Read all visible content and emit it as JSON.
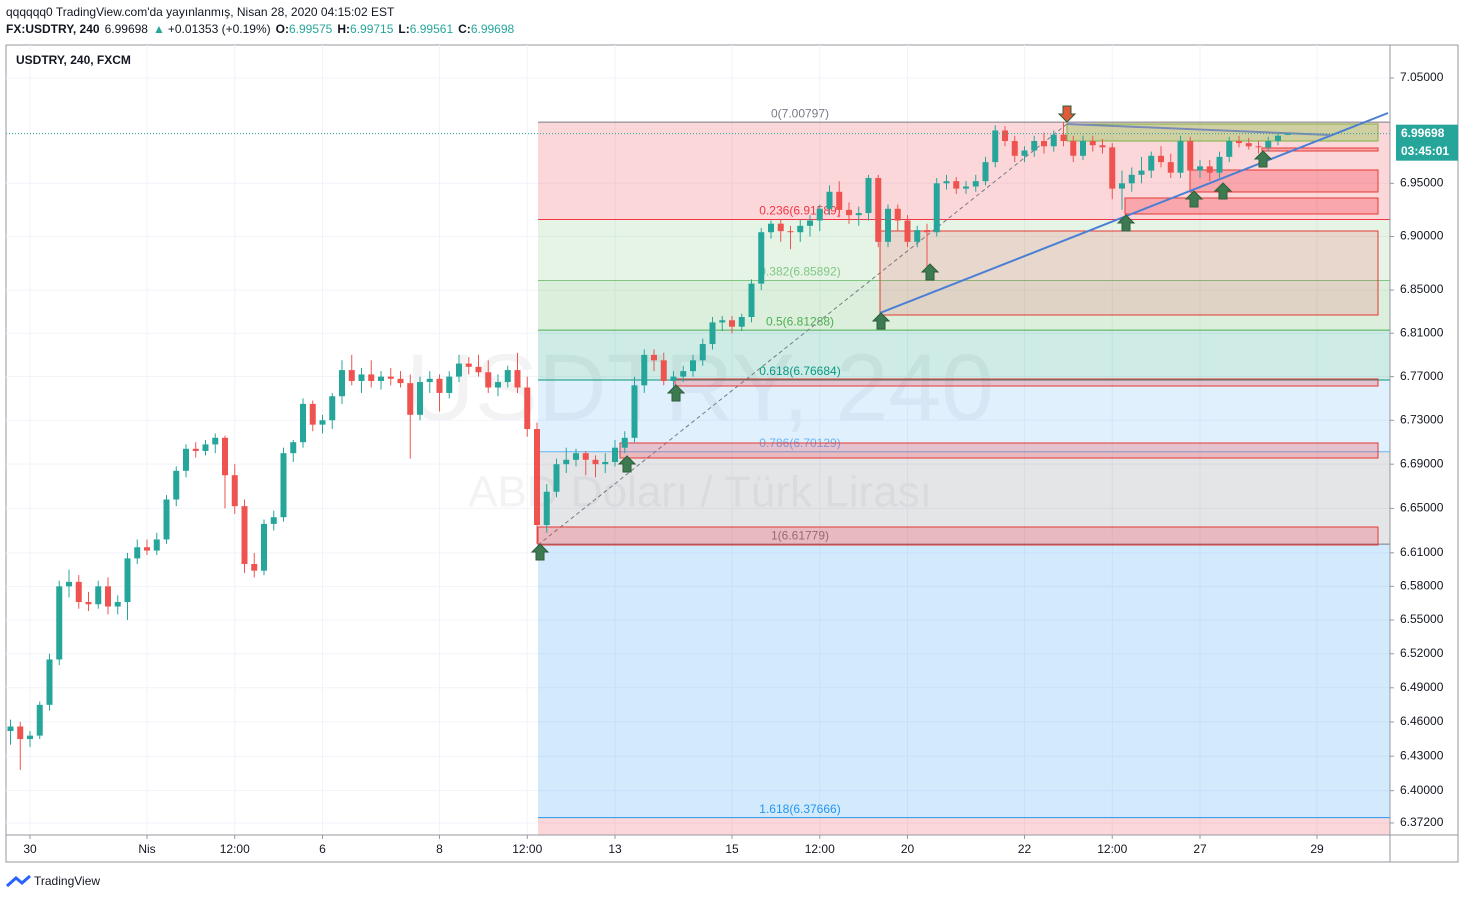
{
  "header": {
    "line1": "qqqqqq0 TradingView.com'da yayınlanmış, Nisan 28, 2020 04:15:02 EST",
    "symbol": "FX:USDTRY, 240",
    "change": "+0.01353 (+0.19%)",
    "labels": {
      "open": "O:",
      "high": "H:",
      "low": "L:",
      "close": "C:"
    }
  },
  "footer": {
    "brand": "TradingView"
  },
  "chart_data": {
    "type": "candlestick",
    "title": "USDTRY, 240, FXCM",
    "watermark": "USDTRY, 240",
    "watermark_subtitle": "ABD Doları / Türk Lirası",
    "countdown": "03:45:01",
    "last": {
      "open": 6.99575,
      "high": 6.99715,
      "low": 6.99561,
      "close": 6.99698
    },
    "up_color": "#26a69a",
    "down_color": "#ef5350",
    "log_scale": true,
    "grid": true,
    "ylim": [
      6.3616,
      7.0817
    ],
    "yticks": [
      {
        "value": 7.05,
        "label": "7.05000"
      },
      {
        "value": 6.95,
        "label": "6.95000"
      },
      {
        "value": 6.9,
        "label": "6.90000"
      },
      {
        "value": 6.85,
        "label": "6.85000"
      },
      {
        "value": 6.81,
        "label": "6.81000"
      },
      {
        "value": 6.77,
        "label": "6.77000"
      },
      {
        "value": 6.73,
        "label": "6.73000"
      },
      {
        "value": 6.69,
        "label": "6.69000"
      },
      {
        "value": 6.65,
        "label": "6.65000"
      },
      {
        "value": 6.61,
        "label": "6.61000"
      },
      {
        "value": 6.58,
        "label": "6.58000"
      },
      {
        "value": 6.55,
        "label": "6.55000"
      },
      {
        "value": 6.52,
        "label": "6.52000"
      },
      {
        "value": 6.49,
        "label": "6.49000"
      },
      {
        "value": 6.46,
        "label": "6.46000"
      },
      {
        "value": 6.43,
        "label": "6.43000"
      },
      {
        "value": 6.4,
        "label": "6.40000"
      },
      {
        "value": 6.372,
        "label": "6.37200"
      }
    ],
    "xticks": [
      {
        "value": 2,
        "label": "30"
      },
      {
        "value": 14,
        "label": "Nis"
      },
      {
        "value": 23,
        "label": "12:00"
      },
      {
        "value": 32,
        "label": "6"
      },
      {
        "value": 44,
        "label": "8"
      },
      {
        "value": 53,
        "label": "12:00"
      },
      {
        "value": 62,
        "label": "13"
      },
      {
        "value": 74,
        "label": "15"
      },
      {
        "value": 83,
        "label": "12:00"
      },
      {
        "value": 92,
        "label": "20"
      },
      {
        "value": 104,
        "label": "22"
      },
      {
        "value": 113,
        "label": "12:00"
      },
      {
        "value": 122,
        "label": "27"
      },
      {
        "value": 134,
        "label": "29"
      }
    ],
    "fib": [
      {
        "label": "0(7.00797)",
        "value": 7.00797,
        "color": "#787b86",
        "fill": "rgba(242,54,69,0.2)"
      },
      {
        "label": "0.236(6.91589)",
        "value": 6.91589,
        "color": "#f23645",
        "fill": "rgba(242,54,69,0.2)"
      },
      {
        "label": "0.382(6.85892)",
        "value": 6.85892,
        "color": "#81c784",
        "fill": "rgba(129,199,132,0.2)"
      },
      {
        "label": "0.5(6.81288)",
        "value": 6.81288,
        "color": "#4caf50",
        "fill": "rgba(76,175,80,0.2)"
      },
      {
        "label": "0.618(6.76684)",
        "value": 6.76684,
        "color": "#089981",
        "fill": "rgba(8,153,129,0.2)"
      },
      {
        "label": "0.786(6.70129)",
        "value": 6.70129,
        "color": "#64b5f6",
        "fill": "rgba(100,181,246,0.2)"
      },
      {
        "label": "1(6.61779)",
        "value": 6.61779,
        "color": "#787b86",
        "fill": "rgba(120,123,134,0.2)"
      },
      {
        "label": "1.618(6.37666)",
        "value": 6.37666,
        "color": "#2196f3",
        "fill": "rgba(33,150,243,0.2)"
      }
    ],
    "candles": [
      [
        6.452,
        6.462,
        6.44,
        6.456
      ],
      [
        6.456,
        6.46,
        6.418,
        6.445
      ],
      [
        6.445,
        6.452,
        6.438,
        6.448
      ],
      [
        6.448,
        6.478,
        6.445,
        6.475
      ],
      [
        6.475,
        6.52,
        6.47,
        6.515
      ],
      [
        6.515,
        6.585,
        6.51,
        6.58
      ],
      [
        6.58,
        6.595,
        6.57,
        6.584
      ],
      [
        6.584,
        6.59,
        6.56,
        6.566
      ],
      [
        6.566,
        6.575,
        6.558,
        6.564
      ],
      [
        6.564,
        6.585,
        6.56,
        6.58
      ],
      [
        6.58,
        6.588,
        6.555,
        6.562
      ],
      [
        6.562,
        6.572,
        6.555,
        6.566
      ],
      [
        6.566,
        6.61,
        6.55,
        6.605
      ],
      [
        6.605,
        6.622,
        6.6,
        6.615
      ],
      [
        6.615,
        6.622,
        6.608,
        6.612
      ],
      [
        6.612,
        6.628,
        6.608,
        6.622
      ],
      [
        6.622,
        6.662,
        6.618,
        6.658
      ],
      [
        6.658,
        6.688,
        6.652,
        6.684
      ],
      [
        6.684,
        6.708,
        6.678,
        6.704
      ],
      [
        6.704,
        6.71,
        6.696,
        6.702
      ],
      [
        6.702,
        6.712,
        6.698,
        6.708
      ],
      [
        6.708,
        6.718,
        6.7,
        6.714
      ],
      [
        6.714,
        6.716,
        6.65,
        6.68
      ],
      [
        6.68,
        6.69,
        6.645,
        6.652
      ],
      [
        6.652,
        6.658,
        6.592,
        6.6
      ],
      [
        6.6,
        6.61,
        6.588,
        6.594
      ],
      [
        6.594,
        6.64,
        6.59,
        6.636
      ],
      [
        6.636,
        6.648,
        6.63,
        6.642
      ],
      [
        6.642,
        6.705,
        6.638,
        6.7
      ],
      [
        6.7,
        6.712,
        6.692,
        6.71
      ],
      [
        6.71,
        6.75,
        6.705,
        6.745
      ],
      [
        6.745,
        6.748,
        6.72,
        6.726
      ],
      [
        6.726,
        6.735,
        6.718,
        6.73
      ],
      [
        6.73,
        6.755,
        6.722,
        6.752
      ],
      [
        6.752,
        6.785,
        6.745,
        6.776
      ],
      [
        6.776,
        6.79,
        6.762,
        6.766
      ],
      [
        6.766,
        6.778,
        6.755,
        6.772
      ],
      [
        6.772,
        6.785,
        6.76,
        6.766
      ],
      [
        6.766,
        6.775,
        6.758,
        6.77
      ],
      [
        6.77,
        6.778,
        6.762,
        6.768
      ],
      [
        6.768,
        6.775,
        6.76,
        6.764
      ],
      [
        6.764,
        6.772,
        6.695,
        6.735
      ],
      [
        6.735,
        6.77,
        6.73,
        6.765
      ],
      [
        6.765,
        6.775,
        6.755,
        6.768
      ],
      [
        6.768,
        6.772,
        6.738,
        6.755
      ],
      [
        6.755,
        6.775,
        6.75,
        6.77
      ],
      [
        6.77,
        6.79,
        6.765,
        6.782
      ],
      [
        6.782,
        6.788,
        6.772,
        6.779
      ],
      [
        6.779,
        6.79,
        6.77,
        6.774
      ],
      [
        6.774,
        6.785,
        6.755,
        6.76
      ],
      [
        6.76,
        6.772,
        6.752,
        6.765
      ],
      [
        6.765,
        6.78,
        6.76,
        6.776
      ],
      [
        6.776,
        6.792,
        6.755,
        6.76
      ],
      [
        6.76,
        6.77,
        6.715,
        6.722
      ],
      [
        6.722,
        6.728,
        6.618,
        6.635
      ],
      [
        6.635,
        6.672,
        6.628,
        6.665
      ],
      [
        6.665,
        6.695,
        6.66,
        6.69
      ],
      [
        6.69,
        6.705,
        6.682,
        6.694
      ],
      [
        6.694,
        6.704,
        6.688,
        6.7
      ],
      [
        6.7,
        6.702,
        6.68,
        6.694
      ],
      [
        6.694,
        6.698,
        6.678,
        6.69
      ],
      [
        6.69,
        6.7,
        6.682,
        6.692
      ],
      [
        6.692,
        6.712,
        6.688,
        6.705
      ],
      [
        6.705,
        6.72,
        6.7,
        6.714
      ],
      [
        6.714,
        6.77,
        6.71,
        6.762
      ],
      [
        6.762,
        6.795,
        6.755,
        6.79
      ],
      [
        6.79,
        6.795,
        6.775,
        6.785
      ],
      [
        6.785,
        6.792,
        6.762,
        6.766
      ],
      [
        6.766,
        6.775,
        6.76,
        6.77
      ],
      [
        6.77,
        6.78,
        6.765,
        6.775
      ],
      [
        6.775,
        6.79,
        6.77,
        6.785
      ],
      [
        6.785,
        6.805,
        6.78,
        6.8
      ],
      [
        6.8,
        6.825,
        6.795,
        6.82
      ],
      [
        6.82,
        6.826,
        6.812,
        6.822
      ],
      [
        6.822,
        6.826,
        6.81,
        6.816
      ],
      [
        6.816,
        6.828,
        6.812,
        6.825
      ],
      [
        6.825,
        6.86,
        6.82,
        6.856
      ],
      [
        6.856,
        6.908,
        6.85,
        6.904
      ],
      [
        6.904,
        6.915,
        6.898,
        6.912
      ],
      [
        6.912,
        6.916,
        6.895,
        6.905
      ],
      [
        6.905,
        6.91,
        6.888,
        6.904
      ],
      [
        6.904,
        6.916,
        6.895,
        6.91
      ],
      [
        6.91,
        6.92,
        6.9,
        6.915
      ],
      [
        6.915,
        6.93,
        6.905,
        6.926
      ],
      [
        6.926,
        6.948,
        6.92,
        6.942
      ],
      [
        6.942,
        6.952,
        6.918,
        6.925
      ],
      [
        6.925,
        6.932,
        6.912,
        6.92
      ],
      [
        6.92,
        6.928,
        6.91,
        6.922
      ],
      [
        6.922,
        6.958,
        6.915,
        6.955
      ],
      [
        6.955,
        6.958,
        6.89,
        6.895
      ],
      [
        6.895,
        6.93,
        6.89,
        6.926
      ],
      [
        6.926,
        6.93,
        6.905,
        6.915
      ],
      [
        6.915,
        6.92,
        6.89,
        6.895
      ],
      [
        6.895,
        6.91,
        6.89,
        6.906
      ],
      [
        6.906,
        6.912,
        6.872,
        6.904
      ],
      [
        6.904,
        6.955,
        6.9,
        6.95
      ],
      [
        6.95,
        6.958,
        6.944,
        6.952
      ],
      [
        6.952,
        6.956,
        6.94,
        6.945
      ],
      [
        6.945,
        6.952,
        6.94,
        6.947
      ],
      [
        6.947,
        6.958,
        6.942,
        6.952
      ],
      [
        6.952,
        6.975,
        6.948,
        6.97
      ],
      [
        6.97,
        7.005,
        6.965,
        7.0
      ],
      [
        7.0,
        7.004,
        6.985,
        6.99
      ],
      [
        6.99,
        6.995,
        6.97,
        6.976
      ],
      [
        6.976,
        6.985,
        6.97,
        6.981
      ],
      [
        6.981,
        6.995,
        6.975,
        6.99
      ],
      [
        6.99,
        6.998,
        6.978,
        6.985
      ],
      [
        6.985,
        7.0,
        6.98,
        6.996
      ],
      [
        6.996,
        7.008,
        6.985,
        6.99
      ],
      [
        6.99,
        6.995,
        6.97,
        6.976
      ],
      [
        6.976,
        6.995,
        6.972,
        6.99
      ],
      [
        6.99,
        6.995,
        6.98,
        6.986
      ],
      [
        6.986,
        6.992,
        6.978,
        6.984
      ],
      [
        6.984,
        6.988,
        6.935,
        6.945
      ],
      [
        6.945,
        6.962,
        6.925,
        6.95
      ],
      [
        6.95,
        6.965,
        6.942,
        6.958
      ],
      [
        6.958,
        6.975,
        6.95,
        6.962
      ],
      [
        6.962,
        6.98,
        6.955,
        6.976
      ],
      [
        6.976,
        6.985,
        6.965,
        6.97
      ],
      [
        6.97,
        6.978,
        6.955,
        6.96
      ],
      [
        6.96,
        6.995,
        6.955,
        6.99
      ],
      [
        6.99,
        6.994,
        6.955,
        6.962
      ],
      [
        6.962,
        6.972,
        6.955,
        6.966
      ],
      [
        6.966,
        6.972,
        6.952,
        6.96
      ],
      [
        6.96,
        6.98,
        6.955,
        6.975
      ],
      [
        6.975,
        6.994,
        6.97,
        6.99
      ],
      [
        6.99,
        6.995,
        6.984,
        6.988
      ],
      [
        6.988,
        6.993,
        6.982,
        6.985
      ],
      [
        6.985,
        6.99,
        6.978,
        6.984
      ],
      [
        6.984,
        6.994,
        6.98,
        6.99
      ],
      [
        6.99,
        6.997,
        6.986,
        6.995
      ],
      [
        6.99575,
        6.99715,
        6.99561,
        6.99698
      ]
    ]
  }
}
